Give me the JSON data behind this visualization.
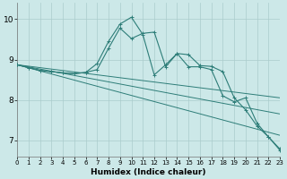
{
  "xlabel": "Humidex (Indice chaleur)",
  "bg_color": "#cce8e8",
  "line_color": "#2d7d78",
  "grid_color": "#aacccc",
  "xlim": [
    0,
    23
  ],
  "ylim": [
    6.6,
    10.4
  ],
  "yticks": [
    7,
    8,
    9,
    10
  ],
  "xticks": [
    0,
    1,
    2,
    3,
    4,
    5,
    6,
    7,
    8,
    9,
    10,
    11,
    12,
    13,
    14,
    15,
    16,
    17,
    18,
    19,
    20,
    21,
    22,
    23
  ],
  "line_jagged": {
    "x": [
      0,
      1,
      2,
      3,
      4,
      5,
      6,
      7,
      8,
      9,
      10,
      11,
      12,
      13,
      14,
      15,
      16,
      17,
      18,
      19,
      20,
      21,
      22,
      23
    ],
    "y": [
      8.87,
      8.8,
      8.73,
      8.7,
      8.67,
      8.65,
      8.68,
      8.75,
      9.28,
      9.78,
      9.52,
      9.65,
      9.68,
      8.82,
      9.15,
      9.12,
      8.85,
      8.83,
      8.7,
      8.05,
      7.75,
      7.35,
      7.08,
      6.78
    ]
  },
  "line_peaked": {
    "x": [
      0,
      1,
      2,
      3,
      4,
      5,
      6,
      7,
      8,
      9,
      10,
      11,
      12,
      13,
      14,
      15,
      16,
      17,
      18,
      19,
      20,
      21,
      22,
      23
    ],
    "y": [
      8.87,
      8.8,
      8.73,
      8.7,
      8.67,
      8.65,
      8.68,
      8.9,
      9.45,
      9.88,
      10.05,
      9.62,
      8.62,
      8.87,
      9.15,
      8.82,
      8.82,
      8.75,
      8.1,
      7.95,
      8.05,
      7.42,
      7.08,
      6.75
    ]
  },
  "trend1": {
    "x": [
      0,
      23
    ],
    "y": [
      8.87,
      8.05
    ]
  },
  "trend2": {
    "x": [
      0,
      23
    ],
    "y": [
      8.87,
      7.65
    ]
  },
  "trend3": {
    "x": [
      0,
      23
    ],
    "y": [
      8.87,
      7.12
    ]
  }
}
